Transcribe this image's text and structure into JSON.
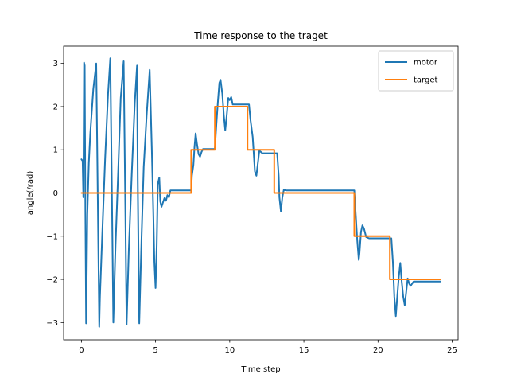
{
  "chart_data": {
    "type": "line",
    "title": "Time response to the traget",
    "xlabel": "Time step",
    "ylabel": "angle(/rad)",
    "xlim": [
      -1.2,
      25.4
    ],
    "ylim": [
      -3.4,
      3.4
    ],
    "xticks": [
      0,
      5,
      10,
      15,
      20,
      25
    ],
    "yticks": [
      -3,
      -2,
      -1,
      0,
      1,
      2,
      3
    ],
    "xtick_labels": [
      "0",
      "5",
      "10",
      "15",
      "20",
      "25"
    ],
    "ytick_labels": [
      "−3",
      "−2",
      "−1",
      "0",
      "1",
      "2",
      "3"
    ],
    "grid": false,
    "legend_position": "top-right",
    "series": [
      {
        "name": "motor",
        "color": "#1f77b4",
        "x": [
          0.0,
          0.08,
          0.13,
          0.18,
          0.22,
          0.27,
          0.32,
          0.36,
          0.4,
          0.5,
          0.6,
          0.8,
          1.0,
          1.15,
          1.2,
          1.25,
          1.4,
          1.6,
          1.8,
          1.95,
          2.05,
          2.15,
          2.3,
          2.5,
          2.65,
          2.85,
          2.95,
          3.05,
          3.2,
          3.4,
          3.6,
          3.75,
          3.8,
          3.9,
          4.05,
          4.2,
          4.4,
          4.6,
          4.75,
          4.85,
          4.92,
          5.0,
          5.08,
          5.15,
          5.25,
          5.32,
          5.4,
          5.5,
          5.6,
          5.7,
          5.8,
          5.9,
          6.0,
          6.5,
          7.0,
          7.4,
          7.45,
          7.55,
          7.62,
          7.7,
          7.8,
          7.9,
          8.0,
          8.1,
          8.2,
          8.35,
          8.6,
          9.0,
          9.1,
          9.2,
          9.3,
          9.38,
          9.5,
          9.6,
          9.7,
          9.8,
          9.9,
          10.0,
          10.1,
          10.2,
          10.3,
          10.5,
          11.0,
          11.3,
          11.4,
          11.55,
          11.7,
          11.8,
          11.9,
          12.0,
          12.2,
          12.5,
          13.0,
          13.2,
          13.3,
          13.35,
          13.45,
          13.55,
          13.65,
          13.8,
          14.0,
          15.0,
          16.0,
          17.0,
          18.4,
          18.5,
          18.6,
          18.7,
          18.75,
          18.85,
          18.95,
          19.05,
          19.2,
          19.4,
          19.6,
          20.0,
          20.6,
          20.9,
          21.0,
          21.1,
          21.2,
          21.3,
          21.4,
          21.5,
          21.6,
          21.7,
          21.8,
          21.9,
          22.0,
          22.1,
          22.2,
          22.4,
          22.6,
          23.0,
          24.2
        ],
        "y": [
          0.78,
          0.74,
          -0.1,
          3.02,
          2.95,
          -0.5,
          -3.02,
          -1.8,
          -0.5,
          0.7,
          1.4,
          2.4,
          3.0,
          -1.5,
          -3.1,
          -2.4,
          -1.0,
          0.8,
          2.3,
          3.12,
          0.2,
          -3.0,
          -1.2,
          0.7,
          2.2,
          3.05,
          0.0,
          -3.05,
          -1.3,
          0.5,
          2.1,
          2.95,
          0.3,
          -3.02,
          -1.1,
          0.6,
          1.8,
          2.85,
          1.0,
          -0.5,
          -1.6,
          -2.2,
          -1.2,
          0.2,
          0.36,
          -0.2,
          -0.32,
          -0.22,
          -0.12,
          -0.18,
          -0.05,
          -0.1,
          0.06,
          0.06,
          0.06,
          0.06,
          0.4,
          0.65,
          1.05,
          1.38,
          1.12,
          0.9,
          0.84,
          0.95,
          1.02,
          1.02,
          1.02,
          1.02,
          1.6,
          2.1,
          2.55,
          2.62,
          2.3,
          1.8,
          1.45,
          1.8,
          2.2,
          2.15,
          2.22,
          2.05,
          2.05,
          2.05,
          2.05,
          2.05,
          1.7,
          1.3,
          0.5,
          0.4,
          0.7,
          0.98,
          0.92,
          0.92,
          0.92,
          0.92,
          0.4,
          -0.1,
          -0.43,
          -0.1,
          0.08,
          0.06,
          0.06,
          0.06,
          0.06,
          0.06,
          0.06,
          -0.5,
          -1.1,
          -1.55,
          -1.4,
          -0.9,
          -0.75,
          -0.82,
          -1.02,
          -1.05,
          -1.05,
          -1.05,
          -1.05,
          -1.05,
          -1.6,
          -2.4,
          -2.85,
          -2.4,
          -1.95,
          -1.62,
          -2.05,
          -2.4,
          -2.6,
          -2.3,
          -1.98,
          -2.1,
          -2.15,
          -2.05,
          -2.05,
          -2.05,
          -2.05
        ]
      },
      {
        "name": "target",
        "color": "#ff7f0e",
        "x": [
          0.0,
          7.4,
          7.4,
          9.0,
          9.0,
          11.2,
          11.2,
          13.0,
          13.0,
          18.4,
          18.4,
          20.8,
          20.8,
          24.2
        ],
        "y": [
          0.0,
          0.0,
          1.0,
          1.0,
          2.0,
          2.0,
          1.0,
          1.0,
          0.0,
          0.0,
          -1.0,
          -1.0,
          -2.0,
          -2.0
        ]
      }
    ]
  }
}
